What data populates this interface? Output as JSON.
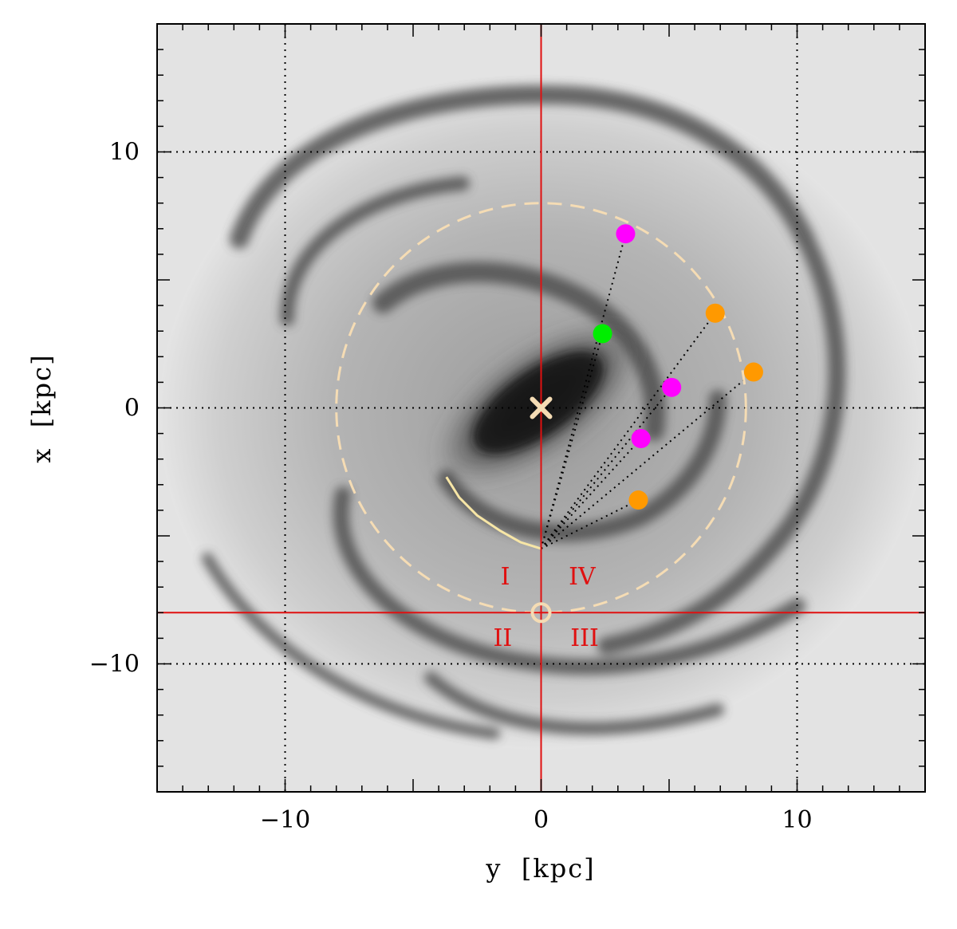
{
  "chart_data": {
    "type": "scatter",
    "title": "",
    "xlabel": "y  [kpc]",
    "ylabel": "x  [kpc]",
    "xlim": [
      -15,
      15
    ],
    "ylim": [
      -15,
      15
    ],
    "x_ticks": [
      -10,
      0,
      10
    ],
    "y_ticks": [
      -10,
      0,
      10
    ],
    "x_tick_labels": [
      "−10",
      "0",
      "10"
    ],
    "y_tick_labels": [
      "−10",
      "0",
      "10"
    ],
    "grid": "dotted at ±10 and 0",
    "background": "grey-scale spiral galaxy map",
    "galactic_center": {
      "x": 0,
      "y": 0,
      "marker": "cross",
      "color": "#f5dcb4"
    },
    "sun": {
      "x": 0,
      "y": -8,
      "marker": "open-circle",
      "color": "#f5dcb4"
    },
    "solar_circle": {
      "radius": 8,
      "style": "dashed",
      "color": "#f5dcb4"
    },
    "red_lines": {
      "vertical_x": 0,
      "horizontal_y": -8,
      "color": "#e01010"
    },
    "arc_segment": [
      [
        -3.7,
        -2.7
      ],
      [
        -3.2,
        -3.5
      ],
      [
        -2.5,
        -4.2
      ],
      [
        -1.6,
        -4.8
      ],
      [
        -0.8,
        -5.25
      ],
      [
        0,
        -5.5
      ]
    ],
    "sight_line_origin": {
      "x": 0,
      "y": -5.5
    },
    "series": [
      {
        "color": "#ff00ff",
        "points": [
          [
            3.3,
            6.8
          ],
          [
            5.1,
            0.8
          ],
          [
            3.9,
            -1.2
          ]
        ]
      },
      {
        "color": "#ff9900",
        "points": [
          [
            6.8,
            3.7
          ],
          [
            8.3,
            1.4
          ],
          [
            3.8,
            -3.6
          ]
        ]
      },
      {
        "color": "#00ee00",
        "points": [
          [
            2.4,
            2.9
          ]
        ]
      }
    ],
    "quadrant_labels": [
      {
        "text": "I",
        "x": -1.4,
        "y": -6.9
      },
      {
        "text": "IV",
        "x": 1.6,
        "y": -6.9
      },
      {
        "text": "II",
        "x": -1.5,
        "y": -9.3
      },
      {
        "text": "III",
        "x": 1.7,
        "y": -9.3
      }
    ]
  }
}
